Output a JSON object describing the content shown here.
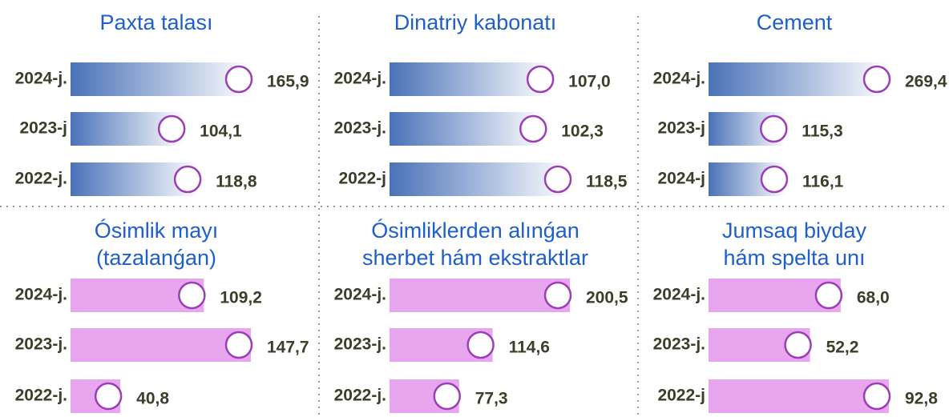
{
  "chart_data": [
    {
      "type": "bar",
      "title": [
        "Paxta talası"
      ],
      "categories": [
        "2024-j.",
        "2023-j",
        "2022-j."
      ],
      "values": [
        165.9,
        104.1,
        118.8
      ],
      "value_labels": [
        "165,9",
        "104,1",
        "118,8"
      ],
      "color": "#4a72b8"
    },
    {
      "type": "bar",
      "title": [
        "Dinatriy kabonatı"
      ],
      "categories": [
        "2024-j.",
        "2023-j.",
        "2022-j"
      ],
      "values": [
        107.0,
        102.3,
        118.5
      ],
      "value_labels": [
        "107,0",
        "102,3",
        "118,5"
      ],
      "color": "#4a72b8"
    },
    {
      "type": "bar",
      "title": [
        "Cement"
      ],
      "categories": [
        "2024-j.",
        "2023-j",
        "2024-j"
      ],
      "values": [
        269.4,
        115.3,
        116.1
      ],
      "value_labels": [
        "269,4",
        "115,3",
        "116,1"
      ],
      "color": "#4a72b8"
    },
    {
      "type": "bar",
      "title": [
        "Ósimlik mayı",
        "(tazalanǵan)"
      ],
      "categories": [
        "2024-j.",
        "2023-j.",
        "2022-j."
      ],
      "values": [
        109.2,
        147.7,
        40.8
      ],
      "value_labels": [
        "109,2",
        "147,7",
        "40,8"
      ],
      "color": "#e8a6ee"
    },
    {
      "type": "bar",
      "title": [
        "Ósimliklerden alınǵan",
        "sherbet hám ekstraktlar"
      ],
      "categories": [
        "2024-j.",
        "2023-j.",
        "2022-j."
      ],
      "values": [
        200.5,
        114.6,
        77.3
      ],
      "value_labels": [
        "200,5",
        "114,6",
        "77,3"
      ],
      "color": "#e8a6ee"
    },
    {
      "type": "bar",
      "title": [
        "Jumsaq biyday",
        "hám spelta unı"
      ],
      "categories": [
        "2024-j.",
        "2023-j.",
        "2022-j"
      ],
      "values": [
        68.0,
        52.2,
        92.8
      ],
      "value_labels": [
        "68,0",
        "52,2",
        "92,8"
      ],
      "color": "#e8a6ee"
    }
  ]
}
